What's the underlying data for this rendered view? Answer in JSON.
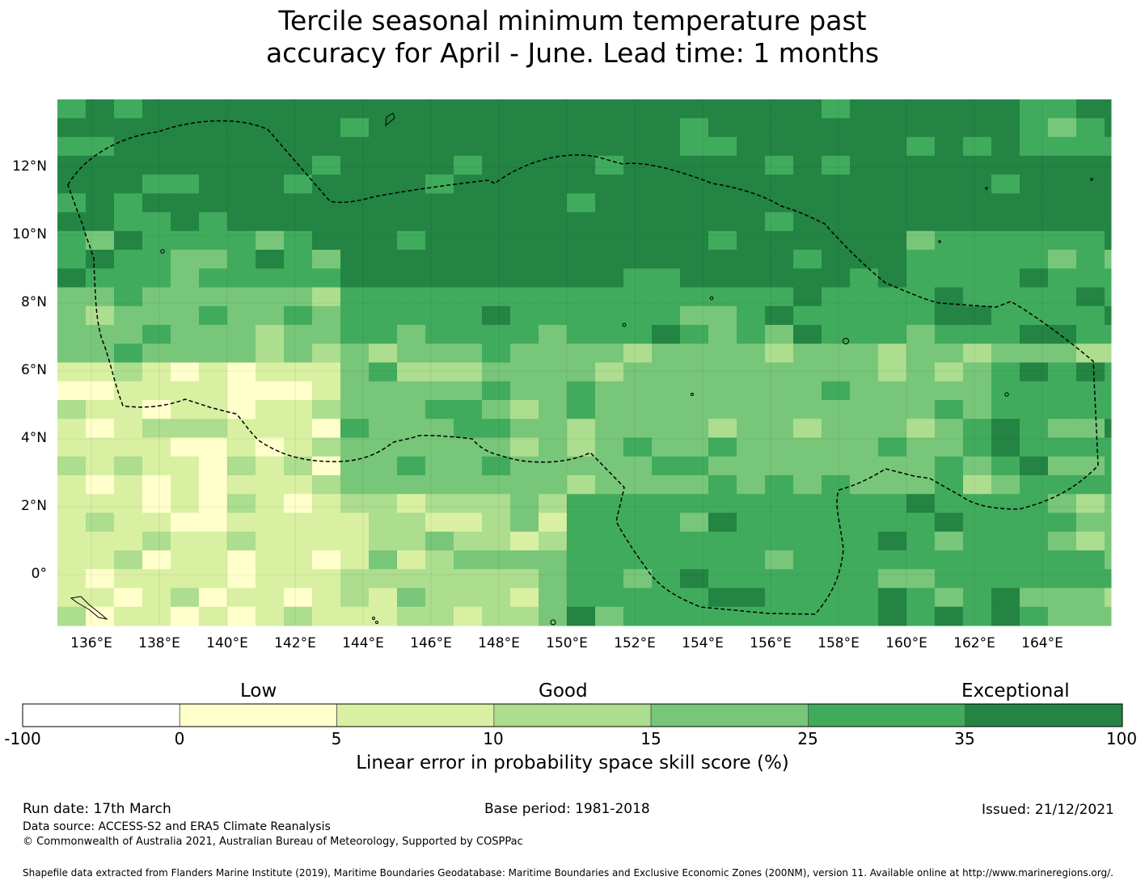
{
  "title_line1": "Tercile seasonal minimum temperature past",
  "title_line2": "accuracy for April - June. Lead time: 1 months",
  "map": {
    "lon_labels": [
      "136°E",
      "138°E",
      "140°E",
      "142°E",
      "144°E",
      "146°E",
      "148°E",
      "150°E",
      "152°E",
      "154°E",
      "156°E",
      "158°E",
      "160°E",
      "162°E",
      "164°E"
    ],
    "lat_labels": [
      "12°N",
      "10°N",
      "8°N",
      "6°N",
      "4°N",
      "2°N",
      "0°"
    ],
    "lon_range": [
      135.0,
      166.0
    ],
    "lat_range": [
      -1.5,
      14.0
    ]
  },
  "colorbar": {
    "category_labels": [
      "Low",
      "Good",
      "Exceptional"
    ],
    "tick_labels": [
      "-100",
      "0",
      "5",
      "10",
      "15",
      "25",
      "35",
      "100"
    ],
    "colors": [
      "#ffffff",
      "#ffffcc",
      "#d9f0a3",
      "#addd8e",
      "#78c679",
      "#41ab5d",
      "#238443"
    ],
    "title": "Linear error in probability space skill score (%)"
  },
  "footer": {
    "run_date": "Run date: 17th March",
    "base_period": "Base period: 1981-2018",
    "issued": "Issued: 21/12/2021",
    "data_source": "Data source: ACCESS-S2 and ERA5 Climate Reanalysis",
    "copyright": "© Commonwealth of Australia 2021, Australian Bureau of Meteorology, Supported by COSPPac",
    "shapefile": "Shapefile data extracted from Flanders Marine Institute (2019), Maritime Boundaries Geodatabase: Maritime Boundaries and Exclusive Economic Zones (200NM), version 11. Available online at http://www.marineregions.org/."
  }
}
